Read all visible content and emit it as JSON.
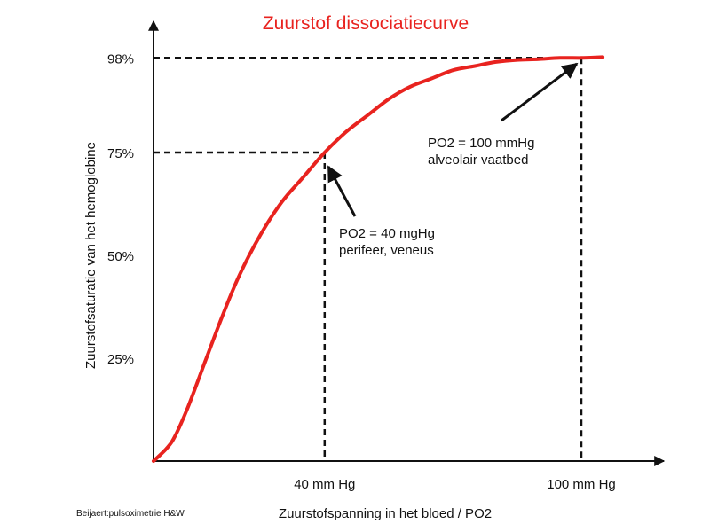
{
  "chart_data": {
    "type": "line",
    "title": "Zuurstof dissociatiecurve",
    "xlabel": "Zuurstofspanning in het bloed / PO2",
    "ylabel": "Zuurstofsaturatie van het hemoglobine",
    "ytick_labels": [
      "25%",
      "50%",
      "75%",
      "98%"
    ],
    "ytick_values": [
      25,
      50,
      75,
      98
    ],
    "xtick_labels": [
      "40 mm Hg",
      "100 mm Hg"
    ],
    "xtick_values": [
      40,
      100
    ],
    "xlim": [
      0,
      108
    ],
    "ylim": [
      0,
      100
    ],
    "grid": false,
    "series": [
      {
        "color": "#e8231f",
        "x": [
          0,
          3,
          5,
          8,
          12,
          16,
          20,
          25,
          30,
          35,
          40,
          45,
          50,
          55,
          60,
          65,
          70,
          75,
          80,
          85,
          90,
          95,
          100,
          105
        ],
        "y": [
          0,
          3,
          6,
          13,
          24,
          35,
          45,
          55,
          63,
          69,
          75,
          80,
          84,
          88,
          91,
          93,
          95,
          96,
          97,
          97.5,
          97.7,
          98,
          98,
          98.2
        ]
      }
    ],
    "reference_points": [
      {
        "x": 40,
        "y": 75
      },
      {
        "x": 100,
        "y": 98
      }
    ],
    "annotations": [
      {
        "lines": [
          "PO2 = 40 mgHg",
          "perifeer, veneus"
        ],
        "target": {
          "x": 40,
          "y": 75
        }
      },
      {
        "lines": [
          "PO2 = 100 mmHg",
          "alveolair vaatbed"
        ],
        "target": {
          "x": 100,
          "y": 98
        }
      }
    ],
    "credit": "Beijaert:pulsoximetrie H&W",
    "colors": {
      "curve": "#e8231f",
      "title": "#e8231f",
      "axis": "#111111"
    }
  }
}
